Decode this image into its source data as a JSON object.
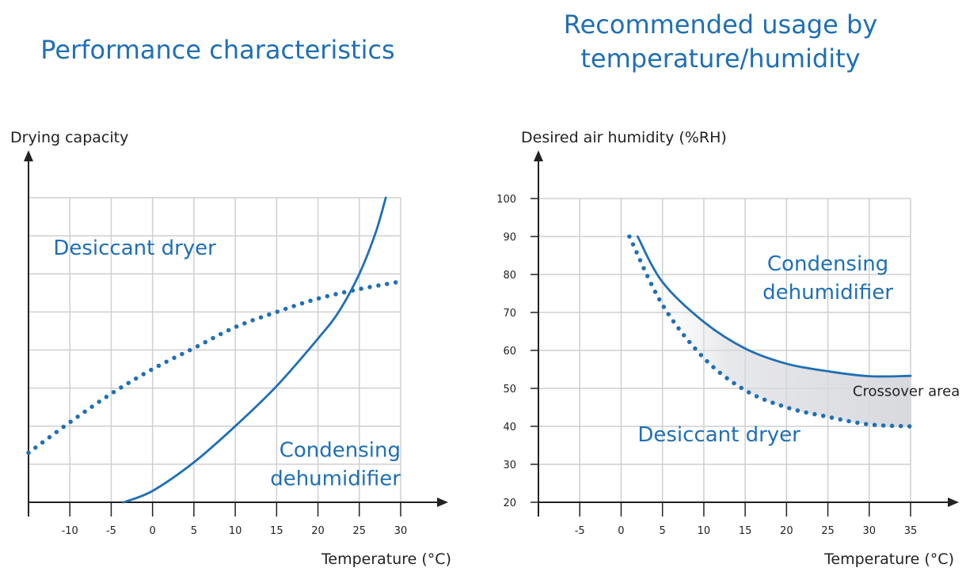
{
  "colors": {
    "accent": "#1f6fb5",
    "grid": "#cfcfcf",
    "axis": "#222222",
    "crossover_fill": "#d8d9de"
  },
  "chart_data": [
    {
      "type": "line",
      "title": "Performance characteristics",
      "xlabel": "Temperature (°C)",
      "ylabel": "Drying capacity",
      "x_tick_labels": [
        "-10",
        "-5",
        "0",
        "5",
        "10",
        "15",
        "20",
        "25",
        "30"
      ],
      "x_ticks": [
        -10,
        -5,
        0,
        5,
        10,
        15,
        20,
        25,
        30
      ],
      "xlim": [
        -15,
        30
      ],
      "ylim": [
        0,
        8
      ],
      "y_tick_labels_shown": false,
      "grid": true,
      "series": [
        {
          "name": "Desiccant dryer",
          "style": "dotted",
          "color": "#1f6fb5",
          "points": [
            [
              -15,
              1.3
            ],
            [
              -10,
              2.1
            ],
            [
              -5,
              2.85
            ],
            [
              0,
              3.5
            ],
            [
              5,
              4.05
            ],
            [
              10,
              4.6
            ],
            [
              15,
              5.0
            ],
            [
              20,
              5.35
            ],
            [
              25,
              5.6
            ],
            [
              30,
              5.8
            ]
          ]
        },
        {
          "name": "Condensing dehumidifier",
          "style": "solid",
          "color": "#1f6fb5",
          "points": [
            [
              -3.5,
              0
            ],
            [
              0,
              0.3
            ],
            [
              5,
              1.05
            ],
            [
              10,
              2.0
            ],
            [
              15,
              3.05
            ],
            [
              20,
              4.3
            ],
            [
              22.5,
              5.0
            ],
            [
              25,
              6.0
            ],
            [
              27,
              7.1
            ],
            [
              28.2,
              8.0
            ]
          ]
        }
      ],
      "annotations": [
        {
          "text": "Desiccant dryer",
          "x": -12,
          "y": 6.5
        },
        {
          "text_lines": [
            "Condensing",
            "dehumidifier"
          ],
          "x": 30,
          "y": 1.2
        }
      ]
    },
    {
      "type": "area",
      "title_lines": [
        "Recommended usage by",
        "temperature/humidity"
      ],
      "xlabel": "Temperature (°C)",
      "ylabel": "Desired air humidity (%RH)",
      "x_tick_labels": [
        "-5",
        "0",
        "5",
        "10",
        "15",
        "20",
        "25",
        "30",
        "35"
      ],
      "x_ticks": [
        -5,
        0,
        5,
        10,
        15,
        20,
        25,
        30,
        35
      ],
      "y_tick_labels": [
        "20",
        "30",
        "40",
        "50",
        "60",
        "70",
        "80",
        "90",
        "100"
      ],
      "y_ticks": [
        20,
        30,
        40,
        50,
        60,
        70,
        80,
        90,
        100
      ],
      "xlim": [
        -10,
        35
      ],
      "ylim": [
        20,
        100
      ],
      "grid": true,
      "series": [
        {
          "name": "Condensing dehumidifier",
          "style": "solid",
          "color": "#1f6fb5",
          "points": [
            [
              2,
              90
            ],
            [
              5,
              78
            ],
            [
              10,
              67.5
            ],
            [
              15,
              60.5
            ],
            [
              20,
              56.5
            ],
            [
              25,
              54.5
            ],
            [
              30,
              53.2
            ],
            [
              35,
              53.3
            ]
          ]
        },
        {
          "name": "Desiccant dryer",
          "style": "dotted",
          "color": "#1f6fb5",
          "points": [
            [
              1,
              90
            ],
            [
              5,
              72
            ],
            [
              10,
              58
            ],
            [
              15,
              49.5
            ],
            [
              20,
              45
            ],
            [
              25,
              42.5
            ],
            [
              30,
              40.5
            ],
            [
              35,
              40
            ]
          ]
        }
      ],
      "annotations": [
        {
          "text_lines": [
            "Condensing",
            "dehumidifier"
          ],
          "x": 25,
          "y": 81
        },
        {
          "text": "Desiccant dryer",
          "x": 2,
          "y": 36
        },
        {
          "text": "Crossover area",
          "x": 28,
          "y": 48
        }
      ]
    }
  ]
}
